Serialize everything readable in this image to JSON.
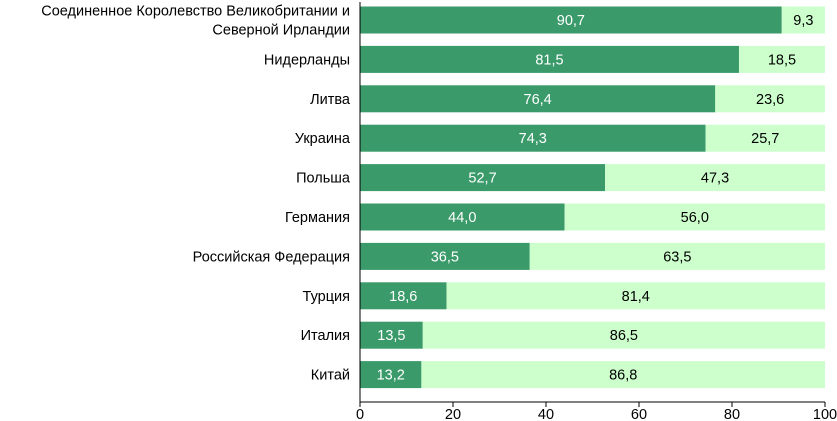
{
  "chart_data": {
    "type": "bar",
    "orientation": "horizontal",
    "stacked": true,
    "categories": [
      [
        "Соединенное Королевство Великобритании и",
        "Северной Ирландии"
      ],
      [
        "Нидерланды"
      ],
      [
        "Литва"
      ],
      [
        "Украина"
      ],
      [
        "Польша"
      ],
      [
        "Германия"
      ],
      [
        "Российская Федерация"
      ],
      [
        "Турция"
      ],
      [
        "Италия"
      ],
      [
        "Китай"
      ]
    ],
    "series": [
      {
        "values": [
          90.7,
          81.5,
          76.4,
          74.3,
          52.7,
          44.0,
          36.5,
          18.6,
          13.5,
          13.2
        ],
        "labels": [
          "90,7",
          "81,5",
          "76,4",
          "74,3",
          "52,7",
          "44,0",
          "36,5",
          "18,6",
          "13,5",
          "13,2"
        ]
      },
      {
        "values": [
          9.3,
          18.5,
          23.6,
          25.7,
          47.3,
          56.0,
          63.5,
          81.4,
          86.5,
          86.8
        ],
        "labels": [
          "9,3",
          "18,5",
          "23,6",
          "25,7",
          "47,3",
          "56,0",
          "63,5",
          "81,4",
          "86,5",
          "86,8"
        ]
      }
    ],
    "xlim": [
      0,
      100
    ],
    "x_ticks": [
      "0",
      "20",
      "40",
      "60",
      "80",
      "100"
    ],
    "grid": false,
    "legend": "none",
    "colors": {
      "series1": "#3a9a6a",
      "series2": "#ccffcc",
      "series1_label": "#ffffff",
      "series2_label": "#000000",
      "axis": "#000000"
    }
  }
}
